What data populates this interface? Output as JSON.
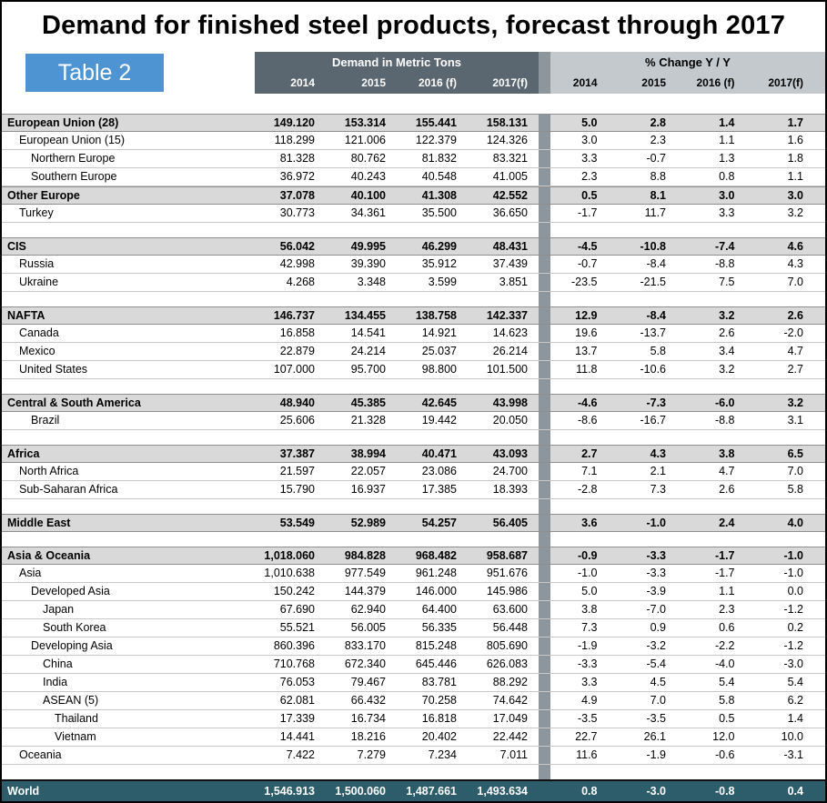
{
  "title": "Demand for finished steel products, forecast through 2017",
  "table_label": "Table 2",
  "header": {
    "group1": "Demand in Metric Tons",
    "group2": "% Change Y / Y",
    "years": [
      "2014",
      "2015",
      "2016 (f)",
      "2017(f)"
    ]
  },
  "colors": {
    "accent": "#4e94d2",
    "header_band": "#5b6770",
    "pct_header_bg": "#c4c9cd",
    "divider": "#8d969c",
    "section_bg": "#d9d9d9",
    "world_bg": "#2d5c6b"
  },
  "rows": [
    {
      "type": "section",
      "indent": 0,
      "name": "European Union (28)",
      "mt": [
        "149.120",
        "153.314",
        "155.441",
        "158.131"
      ],
      "pct": [
        "5.0",
        "2.8",
        "1.4",
        "1.7"
      ]
    },
    {
      "type": "data",
      "indent": 1,
      "name": "European Union (15)",
      "mt": [
        "118.299",
        "121.006",
        "122.379",
        "124.326"
      ],
      "pct": [
        "3.0",
        "2.3",
        "1.1",
        "1.6"
      ]
    },
    {
      "type": "data",
      "indent": 2,
      "name": "Northern Europe",
      "mt": [
        "81.328",
        "80.762",
        "81.832",
        "83.321"
      ],
      "pct": [
        "3.3",
        "-0.7",
        "1.3",
        "1.8"
      ]
    },
    {
      "type": "data",
      "indent": 2,
      "name": "Southern Europe",
      "mt": [
        "36.972",
        "40.243",
        "40.548",
        "41.005"
      ],
      "pct": [
        "2.3",
        "8.8",
        "0.8",
        "1.1"
      ]
    },
    {
      "type": "section",
      "indent": 0,
      "name": "Other Europe",
      "mt": [
        "37.078",
        "40.100",
        "41.308",
        "42.552"
      ],
      "pct": [
        "0.5",
        "8.1",
        "3.0",
        "3.0"
      ]
    },
    {
      "type": "data",
      "indent": 1,
      "name": "Turkey",
      "mt": [
        "30.773",
        "34.361",
        "35.500",
        "36.650"
      ],
      "pct": [
        "-1.7",
        "11.7",
        "3.3",
        "3.2"
      ]
    },
    {
      "type": "spacer"
    },
    {
      "type": "section",
      "indent": 0,
      "name": "CIS",
      "mt": [
        "56.042",
        "49.995",
        "46.299",
        "48.431"
      ],
      "pct": [
        "-4.5",
        "-10.8",
        "-7.4",
        "4.6"
      ]
    },
    {
      "type": "data",
      "indent": 1,
      "name": "Russia",
      "mt": [
        "42.998",
        "39.390",
        "35.912",
        "37.439"
      ],
      "pct": [
        "-0.7",
        "-8.4",
        "-8.8",
        "4.3"
      ]
    },
    {
      "type": "data",
      "indent": 1,
      "name": "Ukraine",
      "mt": [
        "4.268",
        "3.348",
        "3.599",
        "3.851"
      ],
      "pct": [
        "-23.5",
        "-21.5",
        "7.5",
        "7.0"
      ]
    },
    {
      "type": "spacer"
    },
    {
      "type": "section",
      "indent": 0,
      "name": "NAFTA",
      "mt": [
        "146.737",
        "134.455",
        "138.758",
        "142.337"
      ],
      "pct": [
        "12.9",
        "-8.4",
        "3.2",
        "2.6"
      ]
    },
    {
      "type": "data",
      "indent": 1,
      "name": "Canada",
      "mt": [
        "16.858",
        "14.541",
        "14.921",
        "14.623"
      ],
      "pct": [
        "19.6",
        "-13.7",
        "2.6",
        "-2.0"
      ]
    },
    {
      "type": "data",
      "indent": 1,
      "name": "Mexico",
      "mt": [
        "22.879",
        "24.214",
        "25.037",
        "26.214"
      ],
      "pct": [
        "13.7",
        "5.8",
        "3.4",
        "4.7"
      ]
    },
    {
      "type": "data",
      "indent": 1,
      "name": "United States",
      "mt": [
        "107.000",
        "95.700",
        "98.800",
        "101.500"
      ],
      "pct": [
        "11.8",
        "-10.6",
        "3.2",
        "2.7"
      ]
    },
    {
      "type": "spacer"
    },
    {
      "type": "section",
      "indent": 0,
      "name": "Central & South America",
      "mt": [
        "48.940",
        "45.385",
        "42.645",
        "43.998"
      ],
      "pct": [
        "-4.6",
        "-7.3",
        "-6.0",
        "3.2"
      ]
    },
    {
      "type": "data",
      "indent": 2,
      "name": "Brazil",
      "mt": [
        "25.606",
        "21.328",
        "19.442",
        "20.050"
      ],
      "pct": [
        "-8.6",
        "-16.7",
        "-8.8",
        "3.1"
      ]
    },
    {
      "type": "spacer"
    },
    {
      "type": "section",
      "indent": 0,
      "name": "Africa",
      "mt": [
        "37.387",
        "38.994",
        "40.471",
        "43.093"
      ],
      "pct": [
        "2.7",
        "4.3",
        "3.8",
        "6.5"
      ]
    },
    {
      "type": "data",
      "indent": 1,
      "name": "North Africa",
      "mt": [
        "21.597",
        "22.057",
        "23.086",
        "24.700"
      ],
      "pct": [
        "7.1",
        "2.1",
        "4.7",
        "7.0"
      ]
    },
    {
      "type": "data",
      "indent": 1,
      "name": "Sub-Saharan Africa",
      "mt": [
        "15.790",
        "16.937",
        "17.385",
        "18.393"
      ],
      "pct": [
        "-2.8",
        "7.3",
        "2.6",
        "5.8"
      ]
    },
    {
      "type": "spacer"
    },
    {
      "type": "section",
      "indent": 0,
      "name": "Middle East",
      "mt": [
        "53.549",
        "52.989",
        "54.257",
        "56.405"
      ],
      "pct": [
        "3.6",
        "-1.0",
        "2.4",
        "4.0"
      ]
    },
    {
      "type": "spacer"
    },
    {
      "type": "section",
      "indent": 0,
      "name": "Asia & Oceania",
      "mt": [
        "1,018.060",
        "984.828",
        "968.482",
        "958.687"
      ],
      "pct": [
        "-0.9",
        "-3.3",
        "-1.7",
        "-1.0"
      ]
    },
    {
      "type": "data",
      "indent": 1,
      "name": "Asia",
      "mt": [
        "1,010.638",
        "977.549",
        "961.248",
        "951.676"
      ],
      "pct": [
        "-1.0",
        "-3.3",
        "-1.7",
        "-1.0"
      ]
    },
    {
      "type": "data",
      "indent": 2,
      "name": "Developed Asia",
      "mt": [
        "150.242",
        "144.379",
        "146.000",
        "145.986"
      ],
      "pct": [
        "5.0",
        "-3.9",
        "1.1",
        "0.0"
      ]
    },
    {
      "type": "data",
      "indent": 3,
      "name": "Japan",
      "mt": [
        "67.690",
        "62.940",
        "64.400",
        "63.600"
      ],
      "pct": [
        "3.8",
        "-7.0",
        "2.3",
        "-1.2"
      ]
    },
    {
      "type": "data",
      "indent": 3,
      "name": "South Korea",
      "mt": [
        "55.521",
        "56.005",
        "56.335",
        "56.448"
      ],
      "pct": [
        "7.3",
        "0.9",
        "0.6",
        "0.2"
      ]
    },
    {
      "type": "data",
      "indent": 2,
      "name": "Developing Asia",
      "mt": [
        "860.396",
        "833.170",
        "815.248",
        "805.690"
      ],
      "pct": [
        "-1.9",
        "-3.2",
        "-2.2",
        "-1.2"
      ]
    },
    {
      "type": "data",
      "indent": 3,
      "name": "China",
      "mt": [
        "710.768",
        "672.340",
        "645.446",
        "626.083"
      ],
      "pct": [
        "-3.3",
        "-5.4",
        "-4.0",
        "-3.0"
      ]
    },
    {
      "type": "data",
      "indent": 3,
      "name": "India",
      "mt": [
        "76.053",
        "79.467",
        "83.781",
        "88.292"
      ],
      "pct": [
        "3.3",
        "4.5",
        "5.4",
        "5.4"
      ]
    },
    {
      "type": "data",
      "indent": 3,
      "name": "ASEAN (5)",
      "mt": [
        "62.081",
        "66.432",
        "70.258",
        "74.642"
      ],
      "pct": [
        "4.9",
        "7.0",
        "5.8",
        "6.2"
      ]
    },
    {
      "type": "data",
      "indent": 4,
      "name": "Thailand",
      "mt": [
        "17.339",
        "16.734",
        "16.818",
        "17.049"
      ],
      "pct": [
        "-3.5",
        "-3.5",
        "0.5",
        "1.4"
      ]
    },
    {
      "type": "data",
      "indent": 4,
      "name": "Vietnam",
      "mt": [
        "14.441",
        "18.216",
        "20.402",
        "22.442"
      ],
      "pct": [
        "22.7",
        "26.1",
        "12.0",
        "10.0"
      ]
    },
    {
      "type": "data",
      "indent": 1,
      "name": "Oceania",
      "mt": [
        "7.422",
        "7.279",
        "7.234",
        "7.011"
      ],
      "pct": [
        "11.6",
        "-1.9",
        "-0.6",
        "-3.1"
      ]
    },
    {
      "type": "spacer"
    },
    {
      "type": "world",
      "indent": 0,
      "name": "World",
      "mt": [
        "1,546.913",
        "1,500.060",
        "1,487.661",
        "1,493.634"
      ],
      "pct": [
        "0.8",
        "-3.0",
        "-0.8",
        "0.4"
      ]
    }
  ]
}
